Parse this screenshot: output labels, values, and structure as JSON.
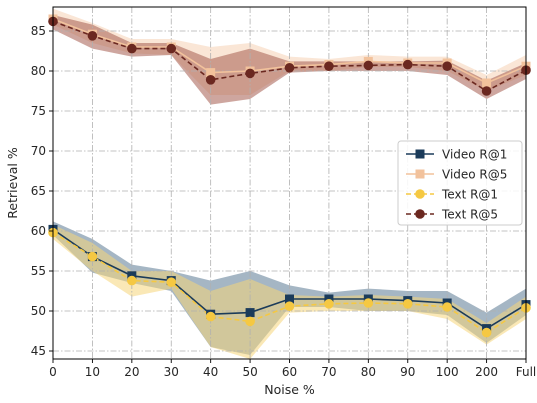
{
  "chart_data": {
    "type": "line",
    "xlabel": "Noise %",
    "ylabel": "Retrieval %",
    "categories": [
      "0",
      "10",
      "20",
      "30",
      "40",
      "50",
      "60",
      "70",
      "80",
      "90",
      "100",
      "200",
      "Full"
    ],
    "ylim": [
      44,
      88
    ],
    "yticks": [
      45,
      50,
      55,
      60,
      65,
      70,
      75,
      80,
      85
    ],
    "grid": true,
    "legend_position": "center-right",
    "series": [
      {
        "name": "Video R@1",
        "color": "#1b3b5a",
        "band_color": "#5b7a94",
        "marker": "square",
        "linestyle": "solid",
        "values": [
          60.2,
          56.8,
          54.4,
          53.8,
          49.6,
          49.8,
          51.5,
          51.5,
          51.5,
          51.3,
          51.0,
          47.8,
          50.8
        ],
        "lower": [
          59.5,
          54.8,
          53.5,
          52.5,
          45.5,
          44.5,
          50.5,
          50.5,
          50.0,
          50.0,
          49.5,
          46.0,
          49.5
        ],
        "upper": [
          61.2,
          59.0,
          55.8,
          55.0,
          53.8,
          55.0,
          53.2,
          52.3,
          52.8,
          52.5,
          52.5,
          49.8,
          52.8
        ]
      },
      {
        "name": "Video R@5",
        "color": "#f2c29c",
        "band_color": "#f6d2b4",
        "marker": "square",
        "linestyle": "solid",
        "values": [
          86.5,
          84.6,
          83.0,
          83.0,
          79.8,
          80.0,
          80.6,
          80.8,
          81.2,
          81.0,
          81.0,
          78.5,
          80.6
        ],
        "lower": [
          85.8,
          83.5,
          82.2,
          82.0,
          77.0,
          77.0,
          80.0,
          80.0,
          80.5,
          80.5,
          80.0,
          77.5,
          79.5
        ],
        "upper": [
          87.8,
          86.0,
          84.0,
          84.0,
          83.0,
          83.5,
          81.8,
          81.5,
          82.0,
          81.8,
          81.8,
          79.5,
          82.0
        ]
      },
      {
        "name": "Text R@1",
        "color": "#f5c842",
        "band_color": "#f5d67a",
        "marker": "circle",
        "linestyle": "dashed",
        "values": [
          59.8,
          56.8,
          53.8,
          53.6,
          49.3,
          48.7,
          50.6,
          50.9,
          51.0,
          50.9,
          50.5,
          47.3,
          50.4
        ],
        "lower": [
          59.0,
          55.0,
          51.8,
          52.8,
          45.5,
          44.0,
          49.8,
          50.0,
          50.0,
          50.0,
          49.0,
          45.8,
          49.0
        ],
        "upper": [
          60.8,
          58.5,
          55.0,
          55.0,
          52.5,
          54.0,
          52.0,
          51.8,
          52.0,
          51.8,
          51.5,
          48.5,
          51.8
        ]
      },
      {
        "name": "Text R@5",
        "color": "#6b2820",
        "band_color": "#a65d50",
        "marker": "circle",
        "linestyle": "dashed",
        "values": [
          86.2,
          84.4,
          82.8,
          82.8,
          78.9,
          79.7,
          80.4,
          80.6,
          80.7,
          80.8,
          80.6,
          77.5,
          80.1
        ],
        "lower": [
          85.2,
          82.8,
          81.8,
          82.0,
          75.8,
          76.5,
          79.8,
          80.0,
          80.0,
          80.0,
          79.5,
          76.5,
          79.0
        ],
        "upper": [
          87.0,
          85.8,
          83.5,
          83.5,
          81.5,
          82.8,
          81.2,
          81.2,
          81.2,
          81.2,
          81.3,
          78.8,
          81.0
        ]
      }
    ]
  }
}
